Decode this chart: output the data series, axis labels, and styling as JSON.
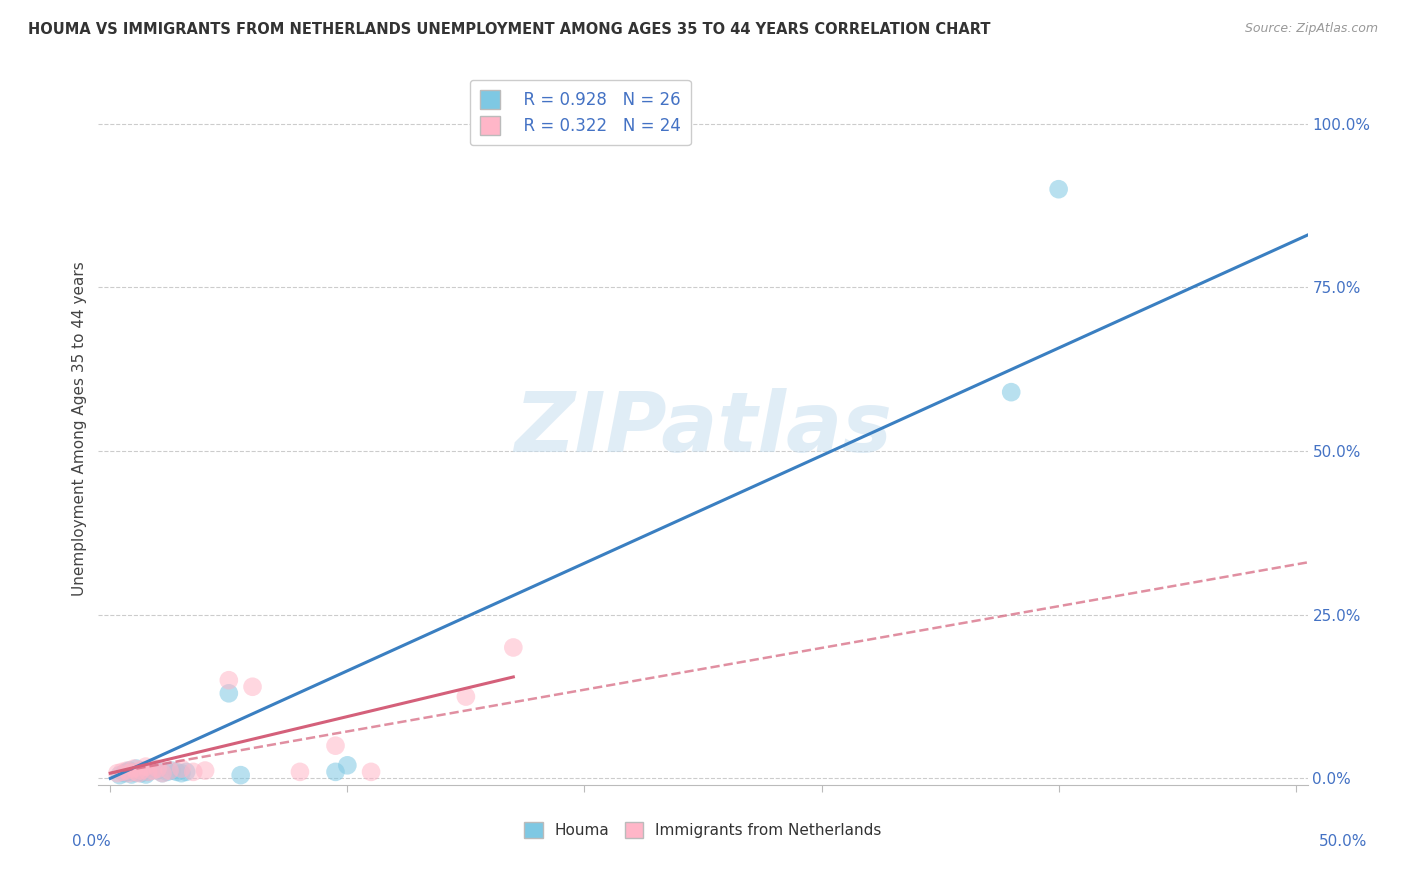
{
  "title": "HOUMA VS IMMIGRANTS FROM NETHERLANDS UNEMPLOYMENT AMONG AGES 35 TO 44 YEARS CORRELATION CHART",
  "source": "Source: ZipAtlas.com",
  "ylabel": "Unemployment Among Ages 35 to 44 years",
  "xlim": [
    -0.005,
    0.505
  ],
  "ylim": [
    -0.01,
    1.08
  ],
  "xtick_positions": [
    0.0,
    0.1,
    0.2,
    0.3,
    0.4,
    0.5
  ],
  "ytick_positions": [
    0.0,
    0.25,
    0.5,
    0.75,
    1.0
  ],
  "ytick_labels": [
    "0.0%",
    "25.0%",
    "50.0%",
    "75.0%",
    "100.0%"
  ],
  "legend_r1": "R = 0.928",
  "legend_n1": "N = 26",
  "legend_r2": "R = 0.322",
  "legend_n2": "N = 24",
  "blue_scatter_color": "#7ec8e3",
  "pink_scatter_color": "#ffb6c8",
  "blue_line_color": "#3a7fc1",
  "pink_line_color": "#d4607a",
  "watermark_color": "#c8dff0",
  "houma_x": [
    0.004,
    0.006,
    0.007,
    0.008,
    0.009,
    0.01,
    0.011,
    0.012,
    0.013,
    0.014,
    0.015,
    0.016,
    0.018,
    0.02,
    0.022,
    0.024,
    0.026,
    0.028,
    0.03,
    0.032,
    0.05,
    0.055,
    0.095,
    0.1,
    0.38,
    0.4
  ],
  "houma_y": [
    0.005,
    0.008,
    0.01,
    0.012,
    0.006,
    0.009,
    0.015,
    0.01,
    0.008,
    0.012,
    0.006,
    0.01,
    0.015,
    0.012,
    0.008,
    0.01,
    0.012,
    0.01,
    0.008,
    0.01,
    0.13,
    0.005,
    0.01,
    0.02,
    0.59,
    0.9
  ],
  "netherlands_x": [
    0.003,
    0.005,
    0.007,
    0.008,
    0.01,
    0.011,
    0.012,
    0.013,
    0.015,
    0.016,
    0.018,
    0.02,
    0.022,
    0.025,
    0.03,
    0.035,
    0.04,
    0.05,
    0.06,
    0.08,
    0.095,
    0.11,
    0.15,
    0.17
  ],
  "netherlands_y": [
    0.008,
    0.01,
    0.012,
    0.008,
    0.015,
    0.01,
    0.008,
    0.012,
    0.018,
    0.01,
    0.012,
    0.015,
    0.008,
    0.012,
    0.015,
    0.01,
    0.012,
    0.15,
    0.14,
    0.01,
    0.05,
    0.01,
    0.125,
    0.2
  ],
  "blue_line_x": [
    0.0,
    0.505
  ],
  "blue_line_y": [
    0.0,
    0.83
  ],
  "pink_solid_line_x": [
    0.0,
    0.17
  ],
  "pink_solid_line_y": [
    0.008,
    0.155
  ],
  "pink_dash_line_x": [
    0.0,
    0.505
  ],
  "pink_dash_line_y": [
    0.008,
    0.33
  ]
}
